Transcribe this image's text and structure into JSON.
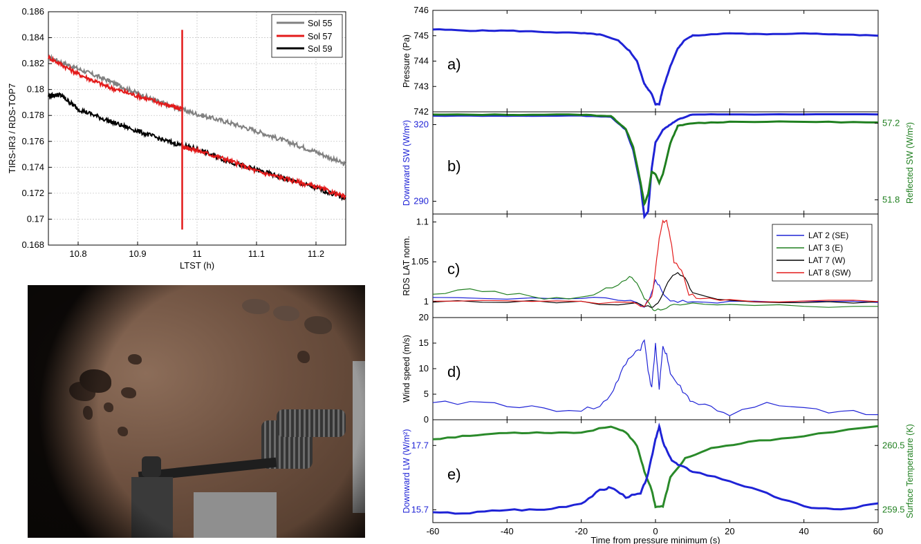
{
  "left_chart": {
    "ylabel": "TIRS-IR3 / RDS-TOP7",
    "xlabel": "LTST (h)",
    "x_ticks": [
      "10.8",
      "10.9",
      "11",
      "11.1",
      "11.2"
    ],
    "y_ticks": [
      "0.168",
      "0.17",
      "0.172",
      "0.174",
      "0.176",
      "0.178",
      "0.18",
      "0.182",
      "0.184",
      "0.186"
    ],
    "legend": [
      "Sol 55",
      "Sol 57",
      "Sol 59"
    ],
    "colors": {
      "sol55": "#808080",
      "sol57": "#e31a1a",
      "sol59": "#000000"
    }
  },
  "right_chart": {
    "xlabel": "Time from pressure minimum (s)",
    "x_ticks": [
      "-60",
      "-40",
      "-20",
      "0",
      "20",
      "40",
      "60"
    ],
    "panel_a": {
      "tag": "a)",
      "ylabel": "Pressure (Pa)",
      "y_ticks": [
        "746",
        "745",
        "744",
        "743",
        "742"
      ]
    },
    "panel_b": {
      "tag": "b)",
      "ylabel_left": "Downward SW (W/m²)",
      "ylabel_right": "Reflected SW (W/m²)",
      "y_ticks_left": [
        "320",
        "290"
      ],
      "y_ticks_right": [
        "57.2",
        "51.8"
      ]
    },
    "panel_c": {
      "tag": "c)",
      "ylabel": "RDS LAT norm.",
      "y_ticks": [
        "1.1",
        "1.05",
        "1"
      ],
      "legend": [
        "LAT 2 (SE)",
        "LAT 3 (E)",
        "LAT 7 (W)",
        "LAT 8 (SW)"
      ]
    },
    "panel_d": {
      "tag": "d)",
      "ylabel": "Wind speed (m/s)",
      "y_ticks": [
        "20",
        "15",
        "10",
        "5",
        "0"
      ]
    },
    "panel_e": {
      "tag": "e)",
      "ylabel_left": "Downward LW (W/m²)",
      "ylabel_right": "Surface Temperature (K)",
      "y_ticks_left": [
        "17.7",
        "15.7"
      ],
      "y_ticks_right": [
        "260.5",
        "259.5"
      ]
    },
    "colors": {
      "blue": "#1f23d6",
      "green": "#1f7f1f",
      "black": "#000000",
      "red": "#e31a1a",
      "darkgreen": "#2a8a2a"
    }
  },
  "chart_data": [
    {
      "type": "line",
      "xlabel": "LTST (h)",
      "ylabel": "TIRS-IR3 / RDS-TOP7",
      "xlim": [
        10.75,
        11.25
      ],
      "ylim": [
        0.168,
        0.186
      ],
      "legend_position": "top-right",
      "grid": true,
      "series": [
        {
          "name": "Sol 55",
          "x": [
            10.75,
            10.8,
            10.85,
            10.9,
            10.95,
            11.0,
            11.05,
            11.1,
            11.15,
            11.2,
            11.25
          ],
          "y": [
            0.1825,
            0.1816,
            0.1807,
            0.1797,
            0.1788,
            0.1781,
            0.1775,
            0.1768,
            0.176,
            0.1752,
            0.1742
          ]
        },
        {
          "name": "Sol 57",
          "x": [
            10.75,
            10.8,
            10.85,
            10.9,
            10.95,
            10.975,
            10.975,
            11.0,
            11.05,
            11.1,
            11.15,
            11.2,
            11.25
          ],
          "y": [
            0.1825,
            0.1812,
            0.1802,
            0.1795,
            0.1788,
            0.1785,
            0.1756,
            0.1753,
            0.1746,
            0.1737,
            0.1731,
            0.1725,
            0.1717
          ]
        },
        {
          "name": "Sol 59",
          "x": [
            10.75,
            10.77,
            10.8,
            10.85,
            10.9,
            10.95,
            11.0,
            11.05,
            11.1,
            11.15,
            11.2,
            11.25
          ],
          "y": [
            0.1795,
            0.1796,
            0.1785,
            0.1776,
            0.1768,
            0.176,
            0.1754,
            0.1745,
            0.1738,
            0.1731,
            0.1724,
            0.1716
          ]
        }
      ]
    },
    {
      "type": "line",
      "panel": "a",
      "xlabel": "",
      "ylabel": "Pressure (Pa)",
      "xlim": [
        -60,
        60
      ],
      "ylim": [
        742,
        746
      ],
      "series": [
        {
          "x": [
            -60,
            -50,
            -40,
            -30,
            -20,
            -15,
            -10,
            -7,
            -5,
            -3,
            -2,
            -1,
            0,
            1,
            2,
            4,
            6,
            8,
            10,
            20,
            30,
            40,
            50,
            60
          ],
          "y": [
            745.25,
            745.2,
            745.2,
            745.15,
            745.1,
            745.05,
            744.8,
            744.4,
            744.0,
            743.1,
            742.9,
            742.7,
            742.3,
            742.3,
            742.9,
            743.8,
            744.5,
            744.85,
            745.0,
            745.1,
            745.05,
            745.1,
            745.05,
            745.0
          ]
        }
      ]
    },
    {
      "type": "line",
      "panel": "b",
      "ylabel": "Downward SW (W/m²)",
      "ylabel_right": "Reflected SW (W/m²)",
      "xlim": [
        -60,
        60
      ],
      "ylim": [
        285,
        325
      ],
      "ylim_right": [
        50.8,
        58.0
      ],
      "series": [
        {
          "axis": "left",
          "x": [
            -60,
            -40,
            -20,
            -12,
            -8,
            -6,
            -4,
            -3,
            -2,
            -1,
            0,
            2,
            4,
            6,
            10,
            20,
            40,
            60
          ],
          "y": [
            323.5,
            323.5,
            323.5,
            323.0,
            318.0,
            310.0,
            296.0,
            284.0,
            286.0,
            303.0,
            313.0,
            318.0,
            320.0,
            322.0,
            324.0,
            324.0,
            324.0,
            324.0
          ]
        },
        {
          "axis": "right",
          "x": [
            -60,
            -40,
            -20,
            -12,
            -8,
            -6,
            -4,
            -3,
            -2,
            -1,
            0,
            1,
            2,
            4,
            6,
            10,
            20,
            40,
            60
          ],
          "y": [
            57.8,
            57.8,
            57.8,
            57.7,
            56.8,
            55.5,
            53.0,
            51.5,
            52.2,
            53.8,
            53.6,
            53.0,
            53.6,
            55.8,
            57.0,
            57.2,
            57.3,
            57.3,
            57.25
          ]
        }
      ]
    },
    {
      "type": "line",
      "panel": "c",
      "ylabel": "RDS LAT norm.",
      "xlim": [
        -60,
        60
      ],
      "ylim": [
        0.98,
        1.11
      ],
      "legend_position": "top-right",
      "series": [
        {
          "name": "LAT 2 (SE)",
          "x": [
            -60,
            -40,
            -20,
            -10,
            -5,
            -3,
            -1,
            0,
            1,
            3,
            6,
            10,
            20,
            40,
            60
          ],
          "y": [
            1.007,
            1.004,
            1.004,
            1.003,
            0.998,
            0.993,
            1.01,
            1.027,
            1.02,
            1.004,
            1.0,
            1.0,
            0.999,
            0.999,
            0.999
          ]
        },
        {
          "name": "LAT 3 (E)",
          "x": [
            -60,
            -50,
            -40,
            -30,
            -20,
            -15,
            -10,
            -7,
            -5,
            -3,
            -1,
            0,
            2,
            5,
            10,
            20,
            40,
            60
          ],
          "y": [
            1.01,
            1.015,
            1.01,
            1.005,
            1.005,
            1.012,
            1.022,
            1.03,
            1.025,
            1.005,
            0.992,
            0.988,
            0.992,
            0.995,
            0.997,
            0.998,
            0.995,
            0.994
          ]
        },
        {
          "name": "LAT 7 (W)",
          "x": [
            -60,
            -40,
            -20,
            -5,
            -2,
            0,
            2,
            4,
            6,
            8,
            10,
            20,
            40,
            60
          ],
          "y": [
            0.999,
            1.0,
            0.999,
            0.997,
            0.994,
            0.995,
            1.01,
            1.03,
            1.037,
            1.03,
            1.01,
            1.0,
            1.0,
            1.0
          ]
        },
        {
          "name": "LAT 8 (SW)",
          "x": [
            -60,
            -40,
            -20,
            -6,
            -3,
            -1,
            0,
            1,
            2,
            3,
            4,
            5,
            7,
            9,
            12,
            20,
            40,
            60
          ],
          "y": [
            0.999,
            1.0,
            1.0,
            0.998,
            0.993,
            1.005,
            1.04,
            1.08,
            1.101,
            1.101,
            1.08,
            1.05,
            1.04,
            1.01,
            1.003,
            1.002,
            1.001,
            1.0
          ]
        }
      ]
    },
    {
      "type": "line",
      "panel": "d",
      "ylabel": "Wind speed (m/s)",
      "xlim": [
        -60,
        60
      ],
      "ylim": [
        0,
        20
      ],
      "series": [
        {
          "x": [
            -60,
            -50,
            -40,
            -30,
            -20,
            -15,
            -12,
            -10,
            -8,
            -6,
            -4,
            -3,
            -2,
            -1,
            0,
            1,
            2,
            3,
            4,
            6,
            8,
            10,
            15,
            20,
            30,
            40,
            50,
            60
          ],
          "y": [
            3.0,
            3.5,
            3.0,
            2.0,
            2.0,
            2.5,
            5.0,
            8.0,
            11.0,
            13.0,
            14.0,
            15.5,
            10.0,
            6.0,
            15.0,
            6.0,
            14.0,
            13.0,
            9.0,
            7.0,
            5.0,
            3.5,
            2.5,
            1.0,
            3.0,
            2.0,
            1.5,
            1.0
          ]
        }
      ]
    },
    {
      "type": "line",
      "panel": "e",
      "ylabel": "Downward LW (W/m²)",
      "ylabel_right": "Surface Temperature (K)",
      "xlim": [
        -60,
        60
      ],
      "ylim": [
        15.3,
        18.5
      ],
      "ylim_right": [
        259.3,
        260.9
      ],
      "series": [
        {
          "axis": "left",
          "x": [
            -60,
            -50,
            -40,
            -30,
            -20,
            -15,
            -12,
            -8,
            -4,
            -2,
            0,
            1,
            2,
            4,
            6,
            10,
            20,
            30,
            40,
            50,
            60
          ],
          "y": [
            15.6,
            15.6,
            15.7,
            15.7,
            15.9,
            16.3,
            16.4,
            16.1,
            16.2,
            16.8,
            17.9,
            18.3,
            17.8,
            17.3,
            17.1,
            16.9,
            16.6,
            16.2,
            15.8,
            15.7,
            15.9
          ]
        },
        {
          "axis": "right",
          "x": [
            -60,
            -50,
            -40,
            -30,
            -20,
            -12,
            -8,
            -5,
            -3,
            -1,
            0,
            2,
            4,
            8,
            15,
            25,
            40,
            60
          ],
          "y": [
            260.6,
            260.65,
            260.7,
            260.7,
            260.7,
            260.8,
            260.7,
            260.5,
            260.1,
            259.8,
            259.55,
            259.55,
            260.0,
            260.3,
            260.45,
            260.55,
            260.65,
            260.8
          ]
        }
      ]
    }
  ]
}
